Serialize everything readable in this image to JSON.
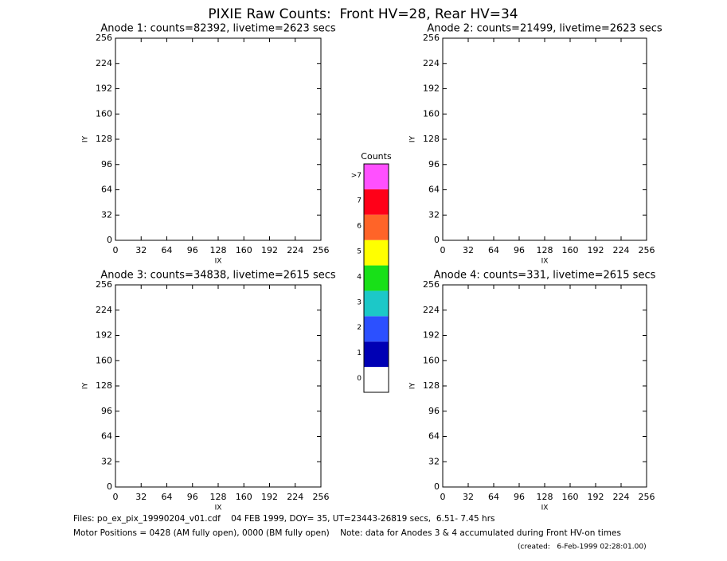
{
  "title": "PIXIE Raw Counts:  Front HV=28, Rear HV=34",
  "chart_data": [
    {
      "type": "heatmap",
      "title": "Anode 1: counts=82392, livetime=2623 secs",
      "xlabel": "IX",
      "ylabel": "IY",
      "xlim": [
        0,
        256
      ],
      "ylim": [
        0,
        256
      ],
      "xticks": [
        0,
        32,
        64,
        96,
        128,
        160,
        192,
        224,
        256
      ],
      "yticks": [
        0,
        32,
        64,
        96,
        128,
        160,
        192,
        224,
        256
      ]
    },
    {
      "type": "heatmap",
      "title": "Anode 2: counts=21499, livetime=2623 secs",
      "xlabel": "IX",
      "ylabel": "IY",
      "xlim": [
        0,
        256
      ],
      "ylim": [
        0,
        256
      ],
      "xticks": [
        0,
        32,
        64,
        96,
        128,
        160,
        192,
        224,
        256
      ],
      "yticks": [
        0,
        32,
        64,
        96,
        128,
        160,
        192,
        224,
        256
      ]
    },
    {
      "type": "heatmap",
      "title": "Anode 3: counts=34838, livetime=2615 secs",
      "xlabel": "IX",
      "ylabel": "IY",
      "xlim": [
        0,
        256
      ],
      "ylim": [
        0,
        256
      ],
      "xticks": [
        0,
        32,
        64,
        96,
        128,
        160,
        192,
        224,
        256
      ],
      "yticks": [
        0,
        32,
        64,
        96,
        128,
        160,
        192,
        224,
        256
      ]
    },
    {
      "type": "heatmap",
      "title": "Anode 4: counts=331, livetime=2615 secs",
      "xlabel": "IX",
      "ylabel": "IY",
      "xlim": [
        0,
        256
      ],
      "ylim": [
        0,
        256
      ],
      "xticks": [
        0,
        32,
        64,
        96,
        128,
        160,
        192,
        224,
        256
      ],
      "yticks": [
        0,
        32,
        64,
        96,
        128,
        160,
        192,
        224,
        256
      ]
    }
  ],
  "colorbar": {
    "title": "Counts",
    "ticks": [
      0,
      1,
      2,
      3,
      4,
      5,
      6,
      7,
      {
        "value": 8,
        "label": ">7"
      }
    ],
    "colors": [
      "#ffffff",
      "#0000b4",
      "#2c50ff",
      "#1cc8c8",
      "#18e018",
      "#ffff00",
      "#ff6428",
      "#ff0018",
      "#ff50ff"
    ]
  },
  "footer": [
    "Files: po_ex_pix_19990204_v01.cdf    04 FEB 1999, DOY= 35, UT=23443-26819 secs,  6.51- 7.45 hrs",
    "Motor Positions = 0428 (AM fully open), 0000 (BM fully open)    Note: data for Anodes 3 & 4 accumulated during Front HV-on times",
    "(created:   6-Feb-1999 02:28:01.00)"
  ]
}
